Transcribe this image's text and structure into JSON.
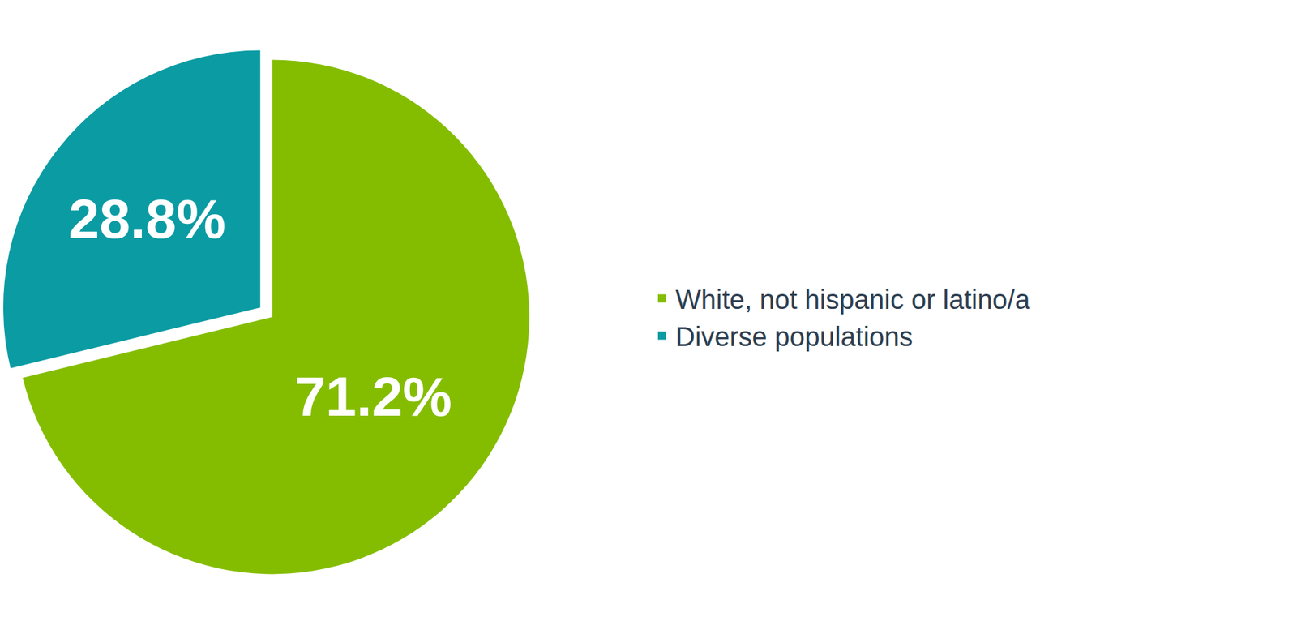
{
  "chart_data": {
    "type": "pie",
    "categories": [
      "White, not hispanic or latino/a",
      "Diverse populations"
    ],
    "values": [
      71.2,
      28.8
    ],
    "value_labels": [
      "71.2%",
      "28.8%"
    ],
    "colors": [
      "#84bd00",
      "#0a9ba3"
    ],
    "data_labels": true,
    "legend": "right"
  }
}
